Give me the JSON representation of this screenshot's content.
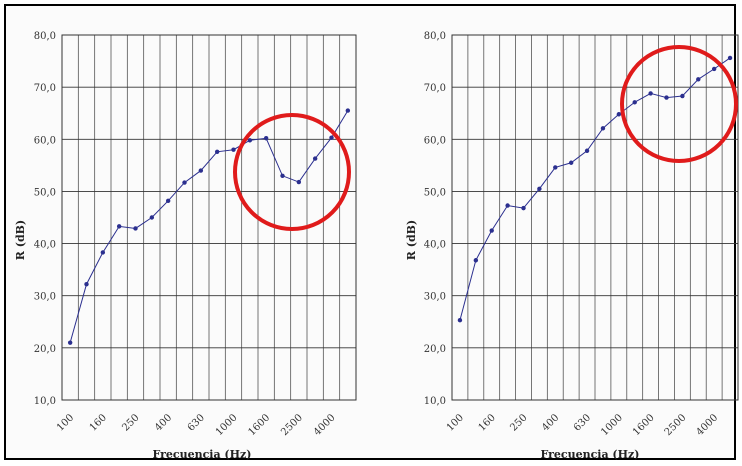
{
  "chart_data": [
    {
      "type": "line",
      "xlabel": "Frecuencia (Hz)",
      "ylabel": "R (dB)",
      "ylim": [
        10,
        80
      ],
      "yticks": [
        "80,0",
        "70,0",
        "60,0",
        "50,0",
        "40,0",
        "30,0",
        "20,0",
        "10,0"
      ],
      "x_tick_labels": [
        "100",
        "160",
        "250",
        "400",
        "630",
        "1000",
        "1600",
        "2500",
        "4000"
      ],
      "x": [
        "100",
        "125",
        "160",
        "200",
        "250",
        "315",
        "400",
        "500",
        "630",
        "800",
        "1000",
        "1250",
        "1600",
        "2000",
        "2500",
        "3150",
        "4000",
        "5000"
      ],
      "series": [
        {
          "values": [
            21.0,
            32.2,
            38.3,
            43.3,
            42.9,
            45.0,
            48.2,
            51.7,
            54.0,
            57.6,
            58.0,
            59.8,
            60.2,
            53.0,
            51.8,
            56.3,
            60.3,
            65.5
          ]
        }
      ],
      "grid": true,
      "line_color": "#2b2f8f",
      "annotation": {
        "type": "circle",
        "color": "#e01b1b"
      }
    },
    {
      "type": "line",
      "xlabel": "Frecuencia (Hz)",
      "ylabel": "R (dB)",
      "ylim": [
        10,
        80
      ],
      "yticks": [
        "80,0",
        "70,0",
        "60,0",
        "50,0",
        "40,0",
        "30,0",
        "20,0",
        "10,0"
      ],
      "x_tick_labels": [
        "100",
        "160",
        "250",
        "400",
        "630",
        "1000",
        "1600",
        "2500",
        "4000"
      ],
      "x": [
        "100",
        "125",
        "160",
        "200",
        "250",
        "315",
        "400",
        "500",
        "630",
        "800",
        "1000",
        "1250",
        "1600",
        "2000",
        "2500",
        "3150",
        "4000",
        "5000"
      ],
      "series": [
        {
          "values": [
            25.3,
            36.8,
            42.5,
            47.3,
            46.8,
            50.5,
            54.6,
            55.5,
            57.8,
            62.1,
            64.8,
            67.1,
            68.8,
            68.0,
            68.3,
            71.5,
            73.5,
            75.6
          ]
        }
      ],
      "grid": true,
      "line_color": "#2b2f8f",
      "annotation": {
        "type": "circle",
        "color": "#e01b1b"
      }
    }
  ]
}
